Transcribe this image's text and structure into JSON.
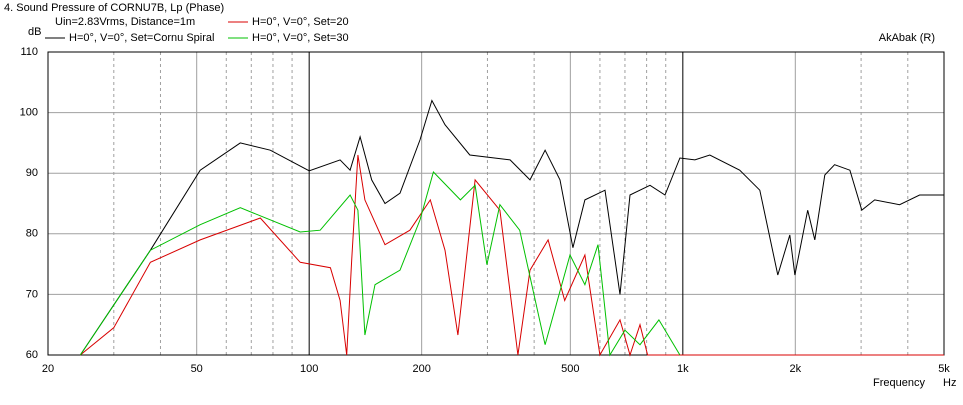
{
  "chart_data": {
    "type": "line",
    "title": "4. Sound Pressure of CORNU7B, Lp (Phase)",
    "subtitle": "Uin=2.83Vrms, Distance=1m",
    "annotation": "AkAbak (R)",
    "y_label": "dB",
    "x_label": "Frequency",
    "x_unit": "Hz",
    "xscale": "log",
    "xlim": [
      20,
      5000
    ],
    "ylim": [
      60,
      110
    ],
    "xticks": [
      20,
      50,
      100,
      200,
      500,
      {
        "value": 1000,
        "label": "1k"
      },
      {
        "value": 2000,
        "label": "2k"
      },
      {
        "value": 5000,
        "label": "5k"
      }
    ],
    "minor_xgrid": [
      30,
      40,
      60,
      70,
      80,
      90,
      300,
      400,
      600,
      700,
      800,
      900,
      3000,
      4000
    ],
    "yticks": [
      60,
      70,
      80,
      90,
      100,
      110
    ],
    "grid": true,
    "series": [
      {
        "name": "H=0°, V=0°, Set=Cornu Spiral",
        "color": "#000000",
        "x": [
          24.4,
          37.6,
          51.1,
          65.4,
          78.7,
          100,
          121,
          128.7,
          136.9,
          147,
          159.6,
          175,
          198,
          213,
          231,
          269,
          345,
          390,
          428,
          469,
          508,
          547,
          619,
          679,
          722,
          817,
          896,
          982,
          1077,
          1181,
          1420,
          1607,
          1795,
          1933,
          1995,
          2159,
          2255,
          2398,
          2548,
          2799,
          3013,
          3262,
          3802,
          4303,
          5000
        ],
        "values": [
          60,
          77.3,
          90.5,
          95,
          93.8,
          90.4,
          92.2,
          90.5,
          96,
          88.9,
          85,
          86.7,
          95.5,
          102,
          98,
          93,
          92.2,
          88.9,
          93.8,
          88.9,
          77.7,
          85.6,
          87.2,
          70,
          86.4,
          88,
          86.4,
          92.5,
          92.2,
          93,
          90.5,
          87.2,
          73.2,
          79.8,
          73.2,
          83.9,
          79,
          89.7,
          91.4,
          90.5,
          83.9,
          85.6,
          84.8,
          86.4,
          86.4
        ]
      },
      {
        "name": "H=0°, V=0°, Set=20",
        "color": "#d80000",
        "x": [
          24.4,
          30,
          37.6,
          51.1,
          74,
          94.6,
          114,
          121,
          126,
          130,
          135,
          141,
          159.6,
          186,
          211,
          231,
          250,
          278,
          324,
          362,
          390,
          436,
          483,
          547,
          600,
          679,
          722,
          768,
          805,
          5000
        ],
        "values": [
          60,
          64.5,
          75.3,
          79,
          82.6,
          75.3,
          74.4,
          69,
          60,
          75.7,
          93,
          85.6,
          78.2,
          80.6,
          85.6,
          77.3,
          63.3,
          88.9,
          83.9,
          60,
          74,
          79,
          69,
          76.5,
          60,
          65.8,
          60,
          65,
          60,
          60
        ]
      },
      {
        "name": "H=0°, V=0°, Set=30",
        "color": "#00c000",
        "x": [
          24.4,
          37.6,
          51.1,
          65.4,
          94.6,
          107,
          128.7,
          135,
          141,
          150,
          175,
          198,
          215,
          254,
          278,
          299,
          324,
          366,
          428,
          499,
          547,
          593,
          638,
          700,
          768,
          863,
          982
        ],
        "values": [
          60,
          77.3,
          81.5,
          84.3,
          80.3,
          80.6,
          86.4,
          83.9,
          63.3,
          71.6,
          74,
          82.3,
          90.2,
          85.6,
          88,
          74.9,
          84.8,
          80.6,
          61.7,
          76.5,
          71.6,
          78.2,
          60,
          64.1,
          61.7,
          65.8,
          60
        ]
      }
    ]
  }
}
